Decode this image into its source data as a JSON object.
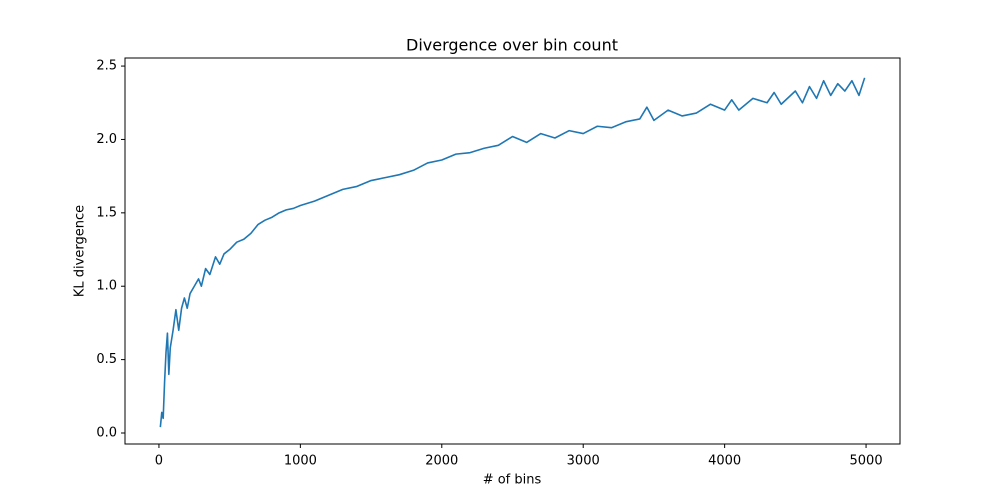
{
  "chart_data": {
    "type": "line",
    "title": "Divergence over bin count",
    "xlabel": "# of bins",
    "ylabel": "KL divergence",
    "x": [
      10,
      20,
      30,
      40,
      50,
      60,
      70,
      80,
      100,
      120,
      140,
      160,
      180,
      200,
      220,
      250,
      280,
      300,
      330,
      360,
      400,
      430,
      460,
      500,
      550,
      600,
      650,
      700,
      750,
      800,
      850,
      900,
      950,
      1000,
      1100,
      1200,
      1300,
      1400,
      1500,
      1600,
      1700,
      1800,
      1900,
      2000,
      2100,
      2200,
      2300,
      2400,
      2500,
      2600,
      2700,
      2800,
      2900,
      3000,
      3100,
      3200,
      3300,
      3400,
      3450,
      3500,
      3600,
      3700,
      3800,
      3900,
      4000,
      4050,
      4100,
      4200,
      4300,
      4350,
      4400,
      4500,
      4550,
      4600,
      4650,
      4700,
      4750,
      4800,
      4850,
      4900,
      4950,
      4990
    ],
    "series": [
      {
        "name": "KL divergence",
        "color": "#1f77b4",
        "values": [
          0.04,
          0.14,
          0.1,
          0.35,
          0.55,
          0.68,
          0.4,
          0.58,
          0.7,
          0.84,
          0.7,
          0.85,
          0.92,
          0.85,
          0.95,
          1.0,
          1.05,
          1.0,
          1.12,
          1.08,
          1.2,
          1.15,
          1.22,
          1.25,
          1.3,
          1.32,
          1.36,
          1.42,
          1.45,
          1.47,
          1.5,
          1.52,
          1.53,
          1.55,
          1.58,
          1.62,
          1.66,
          1.68,
          1.72,
          1.74,
          1.76,
          1.79,
          1.84,
          1.86,
          1.9,
          1.91,
          1.94,
          1.96,
          2.02,
          1.98,
          2.04,
          2.01,
          2.06,
          2.04,
          2.09,
          2.08,
          2.12,
          2.14,
          2.22,
          2.13,
          2.2,
          2.16,
          2.18,
          2.24,
          2.2,
          2.27,
          2.2,
          2.28,
          2.25,
          2.32,
          2.24,
          2.33,
          2.25,
          2.36,
          2.28,
          2.4,
          2.3,
          2.38,
          2.33,
          2.4,
          2.3,
          2.42
        ]
      }
    ],
    "xlim": [
      -240,
      5240
    ],
    "ylim": [
      -0.075,
      2.555
    ],
    "xticks": [
      0,
      1000,
      2000,
      3000,
      4000,
      5000
    ],
    "yticks": [
      {
        "value": 0,
        "label": "0.0"
      },
      0.5,
      {
        "value": 1,
        "label": "1.0"
      },
      1.5,
      {
        "value": 2,
        "label": "2.0"
      },
      2.5
    ],
    "grid": false
  }
}
